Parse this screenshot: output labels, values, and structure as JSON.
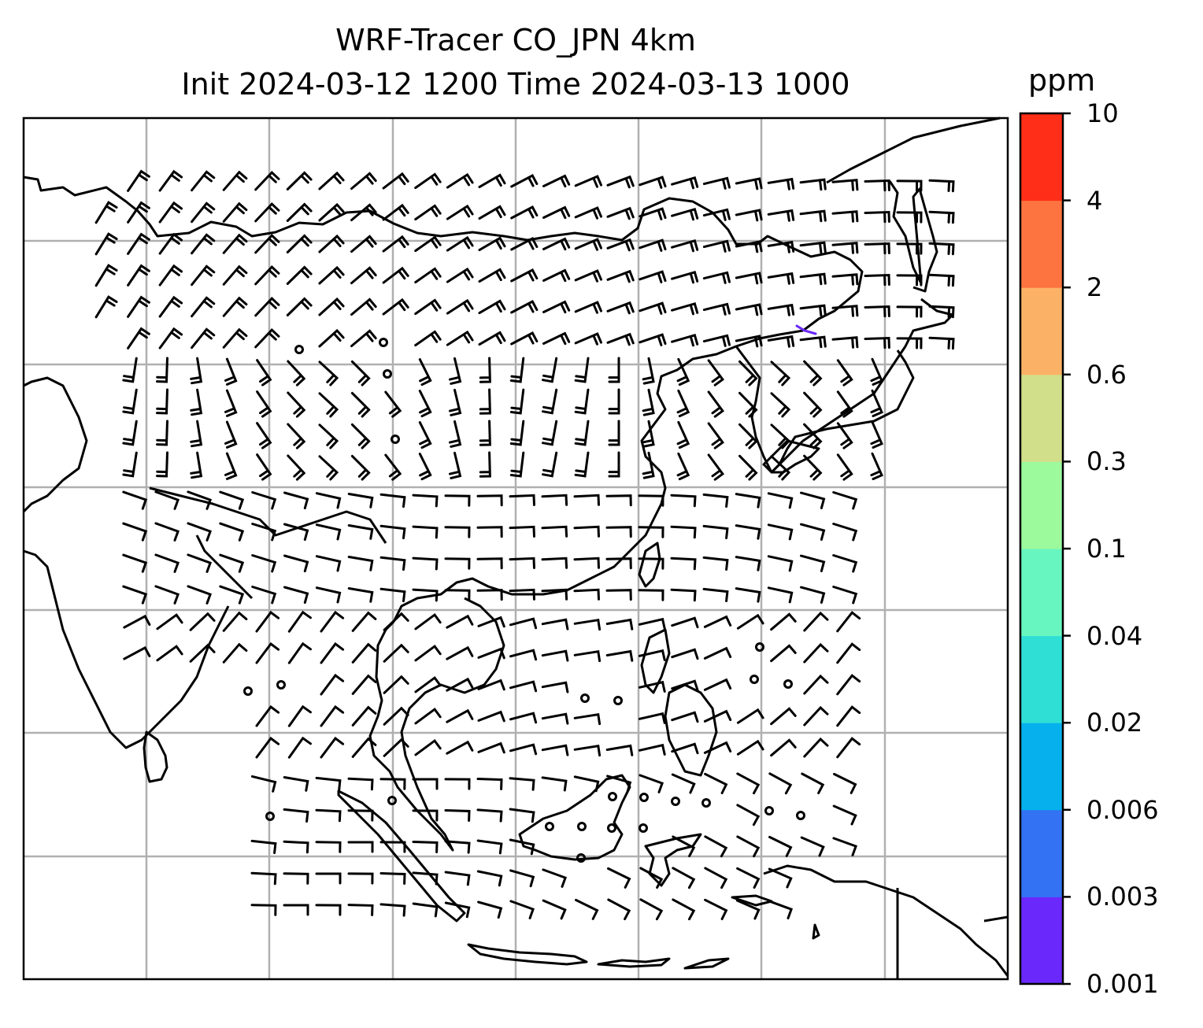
{
  "title": {
    "line1": "WRF-Tracer CO_JPN 4km",
    "line2": "Init 2024-03-12 1200 Time 2024-03-13 1000"
  },
  "map": {
    "projection": "lat-lon",
    "features": [
      "coastlines",
      "gridlines",
      "wind-barbs"
    ],
    "grid_color": "#b0b0b0",
    "coast_color": "#000000",
    "barb_color": "#000000"
  },
  "colorbar": {
    "unit": "ppm",
    "ticks": [
      "0.001",
      "0.003",
      "0.006",
      "0.02",
      "0.04",
      "0.1",
      "0.3",
      "0.6",
      "2",
      "4",
      "10"
    ],
    "colors": [
      "#6a28fa",
      "#3272f3",
      "#06b0ec",
      "#2fdfd6",
      "#68f6c0",
      "#9cf99c",
      "#d1df8a",
      "#fcb266",
      "#fd7440",
      "#ff2e18"
    ]
  }
}
